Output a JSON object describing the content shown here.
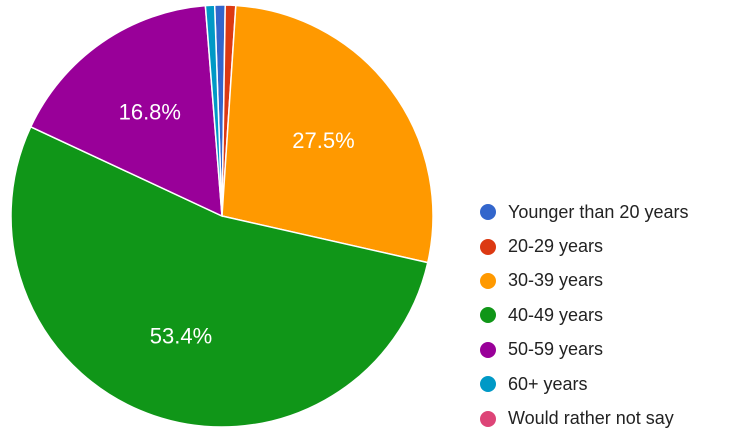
{
  "chart_data": {
    "type": "pie",
    "title": "",
    "slices": [
      {
        "label": "Younger than 20 years",
        "value": 0.8,
        "color": "#3366cc",
        "value_label": ""
      },
      {
        "label": "20-29 years",
        "value": 0.8,
        "color": "#dc3912",
        "value_label": ""
      },
      {
        "label": "30-39 years",
        "value": 27.5,
        "color": "#ff9900",
        "value_label": "27.5%"
      },
      {
        "label": "40-49 years",
        "value": 53.4,
        "color": "#109618",
        "value_label": "53.4%"
      },
      {
        "label": "50-59 years",
        "value": 16.8,
        "color": "#990099",
        "value_label": "16.8%"
      },
      {
        "label": "60+ years",
        "value": 0.7,
        "color": "#0099c6",
        "value_label": ""
      },
      {
        "label": "Would rather not say",
        "value": 0.0,
        "color": "#dd4477",
        "value_label": ""
      }
    ],
    "legend_position": "right"
  }
}
